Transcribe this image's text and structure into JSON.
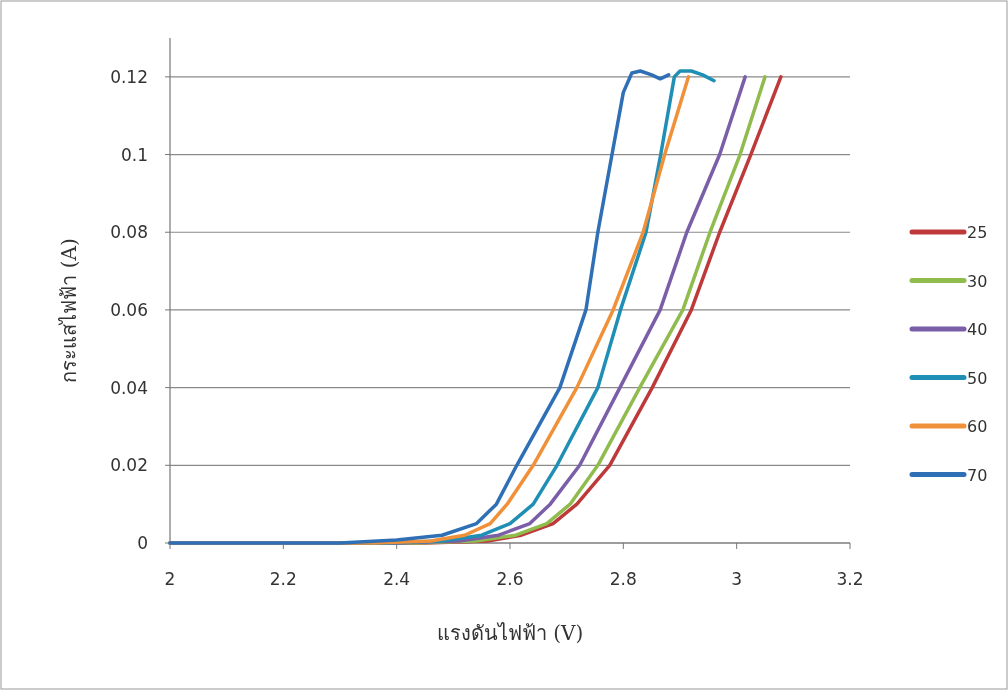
{
  "chart_data": {
    "type": "line",
    "xlabel": "แรงดันไฟฟ้า (V)",
    "ylabel": "กระแสไฟฟ้า (A)",
    "xlim": [
      2,
      3.2
    ],
    "ylim": [
      0,
      0.13
    ],
    "xticks": [
      2,
      2.2,
      2.4,
      2.6,
      2.8,
      3,
      3.2
    ],
    "yticks": [
      0,
      0.02,
      0.04,
      0.06,
      0.08,
      0.1,
      0.12
    ],
    "grid": "y",
    "legend": "right",
    "marker": "none",
    "line_style": "solid",
    "series": [
      {
        "name": "25",
        "color": "#be3a3a",
        "x": [
          2,
          2.45,
          2.56,
          2.62,
          2.676,
          2.718,
          2.776,
          2.851,
          2.92,
          2.97,
          3.025,
          3.078
        ],
        "values": [
          0,
          0,
          0.0005,
          0.002,
          0.005,
          0.01,
          0.02,
          0.04,
          0.06,
          0.08,
          0.1,
          0.12
        ]
      },
      {
        "name": "30",
        "color": "#8fbc4d",
        "x": [
          2,
          2.43,
          2.54,
          2.61,
          2.665,
          2.706,
          2.755,
          2.829,
          2.905,
          2.953,
          3.006,
          3.05
        ],
        "values": [
          0,
          0,
          0.0005,
          0.002,
          0.005,
          0.01,
          0.02,
          0.04,
          0.06,
          0.08,
          0.1,
          0.12
        ]
      },
      {
        "name": "40",
        "color": "#7b5ea8",
        "x": [
          2,
          2.4,
          2.51,
          2.58,
          2.635,
          2.671,
          2.723,
          2.794,
          2.865,
          2.912,
          2.97,
          3.015
        ],
        "values": [
          0,
          0,
          0.0005,
          0.002,
          0.005,
          0.01,
          0.02,
          0.04,
          0.06,
          0.08,
          0.1,
          0.12
        ]
      },
      {
        "name": "50",
        "color": "#1f8fb5",
        "x": [
          2,
          2.38,
          2.48,
          2.55,
          2.6,
          2.641,
          2.683,
          2.755,
          2.795,
          2.84,
          2.866,
          2.89,
          2.9,
          2.92,
          2.94,
          2.96
        ],
        "values": [
          0,
          0,
          0.0005,
          0.002,
          0.005,
          0.01,
          0.02,
          0.04,
          0.06,
          0.08,
          0.1,
          0.12,
          0.1215,
          0.1215,
          0.1205,
          0.119
        ]
      },
      {
        "name": "60",
        "color": "#f0913a",
        "x": [
          2,
          2.36,
          2.46,
          2.52,
          2.565,
          2.595,
          2.641,
          2.718,
          2.782,
          2.835,
          2.873,
          2.915
        ],
        "values": [
          0,
          0,
          0.0005,
          0.002,
          0.005,
          0.01,
          0.02,
          0.04,
          0.06,
          0.08,
          0.1,
          0.12
        ]
      },
      {
        "name": "70",
        "color": "#2e6fb6",
        "x": [
          2,
          2.3,
          2.4,
          2.48,
          2.541,
          2.576,
          2.612,
          2.688,
          2.734,
          2.755,
          2.78,
          2.8,
          2.815,
          2.83,
          2.85,
          2.865,
          2.88
        ],
        "values": [
          0,
          0,
          0.0008,
          0.002,
          0.005,
          0.01,
          0.02,
          0.04,
          0.06,
          0.08,
          0.1,
          0.116,
          0.121,
          0.1215,
          0.1205,
          0.1195,
          0.1205
        ]
      }
    ]
  }
}
